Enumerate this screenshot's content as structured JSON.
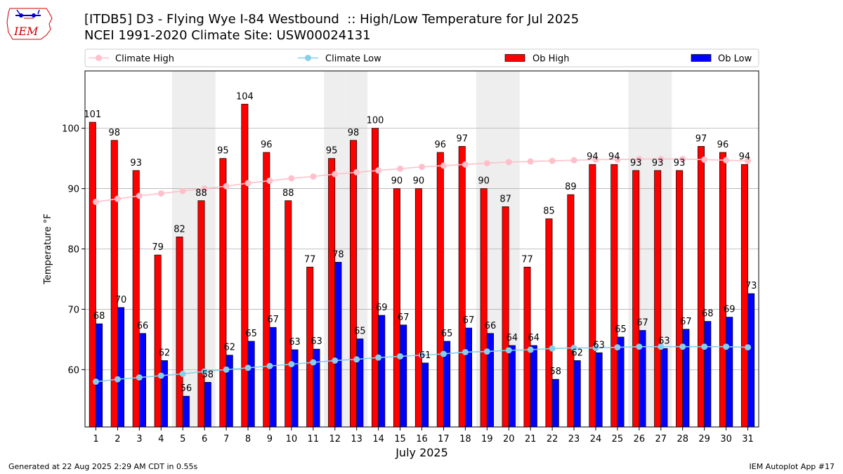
{
  "header": {
    "logo_text": "IEM",
    "title_line1": "[ITDB5] D3 - Flying Wye I-84 Westbound  :: High/Low Temperature for Jul 2025",
    "title_line2": "NCEI 1991-2020 Climate Site: USW00024131"
  },
  "footer": {
    "generated": "Generated at 22 Aug 2025 2:29 AM CDT in 0.55s",
    "app": "IEM Autoplot App #17"
  },
  "chart_data": {
    "type": "bar",
    "xlabel": "July 2025",
    "ylabel": "Temperature °F",
    "ylim": [
      50.5,
      109.5
    ],
    "yticks": [
      60,
      70,
      80,
      90,
      100
    ],
    "grid": "horizontal",
    "legend_position": "top",
    "categories": [
      "1",
      "2",
      "3",
      "4",
      "5",
      "6",
      "7",
      "8",
      "9",
      "10",
      "11",
      "12",
      "13",
      "14",
      "15",
      "16",
      "17",
      "18",
      "19",
      "20",
      "21",
      "22",
      "23",
      "24",
      "25",
      "26",
      "27",
      "28",
      "29",
      "30",
      "31"
    ],
    "weekend_shading_days": [
      5,
      6,
      12,
      13,
      19,
      20,
      26,
      27
    ],
    "colors": {
      "ob_high": "#ff0000",
      "ob_low": "#0000ff",
      "climate_high": "#ffc0cb",
      "climate_low": "#87ceeb",
      "weekend_band": "#eeeeee",
      "grid": "#b0b0b0"
    },
    "series": [
      {
        "name": "Ob High",
        "kind": "bar",
        "values": [
          101,
          98,
          93,
          79,
          82,
          88,
          95,
          104,
          96,
          88,
          77,
          95,
          98,
          100,
          90,
          90,
          96,
          97,
          90,
          87,
          77,
          85,
          89,
          94,
          94,
          93,
          93,
          93,
          97,
          96,
          94
        ],
        "labels": [
          "101",
          "98",
          "93",
          "79",
          "82",
          "88",
          "95",
          "104",
          "96",
          "88",
          "77",
          "95",
          "98",
          "100",
          "90",
          "90",
          "96",
          "97",
          "90",
          "87",
          "77",
          "85",
          "89",
          "94",
          "94",
          "93",
          "93",
          "93",
          "97",
          "96",
          "94"
        ]
      },
      {
        "name": "Ob Low",
        "kind": "bar",
        "values": [
          67.6,
          70.3,
          66,
          61.5,
          55.6,
          57.9,
          62.4,
          64.7,
          67,
          63.3,
          63.4,
          77.8,
          65.1,
          69,
          67.4,
          61.1,
          64.7,
          66.9,
          66,
          64,
          64,
          58.4,
          61.5,
          62.8,
          65.4,
          66.5,
          63.5,
          66.7,
          68,
          68.7,
          72.6
        ],
        "labels": [
          "68",
          "70",
          "66",
          "62",
          "56",
          "58",
          "62",
          "65",
          "67",
          "63",
          "63",
          "78",
          "65",
          "69",
          "67",
          "61",
          "65",
          "67",
          "66",
          "64",
          "64",
          "58",
          "62",
          "63",
          "65",
          "67",
          "63",
          "67",
          "68",
          "69",
          "73"
        ]
      },
      {
        "name": "Climate High",
        "kind": "line",
        "values": [
          87.8,
          88.3,
          88.8,
          89.2,
          89.6,
          90.0,
          90.4,
          90.9,
          91.3,
          91.7,
          92.0,
          92.4,
          92.7,
          93.0,
          93.3,
          93.6,
          93.8,
          94.0,
          94.2,
          94.4,
          94.5,
          94.6,
          94.7,
          94.8,
          94.8,
          94.9,
          94.9,
          94.9,
          94.8,
          94.7,
          94.6
        ]
      },
      {
        "name": "Climate Low",
        "kind": "line",
        "values": [
          58.0,
          58.4,
          58.7,
          59.0,
          59.3,
          59.7,
          60.0,
          60.3,
          60.6,
          60.9,
          61.2,
          61.5,
          61.7,
          62.0,
          62.2,
          62.4,
          62.6,
          62.9,
          63.0,
          63.2,
          63.3,
          63.5,
          63.6,
          63.6,
          63.7,
          63.8,
          63.8,
          63.8,
          63.8,
          63.8,
          63.7
        ]
      }
    ]
  }
}
